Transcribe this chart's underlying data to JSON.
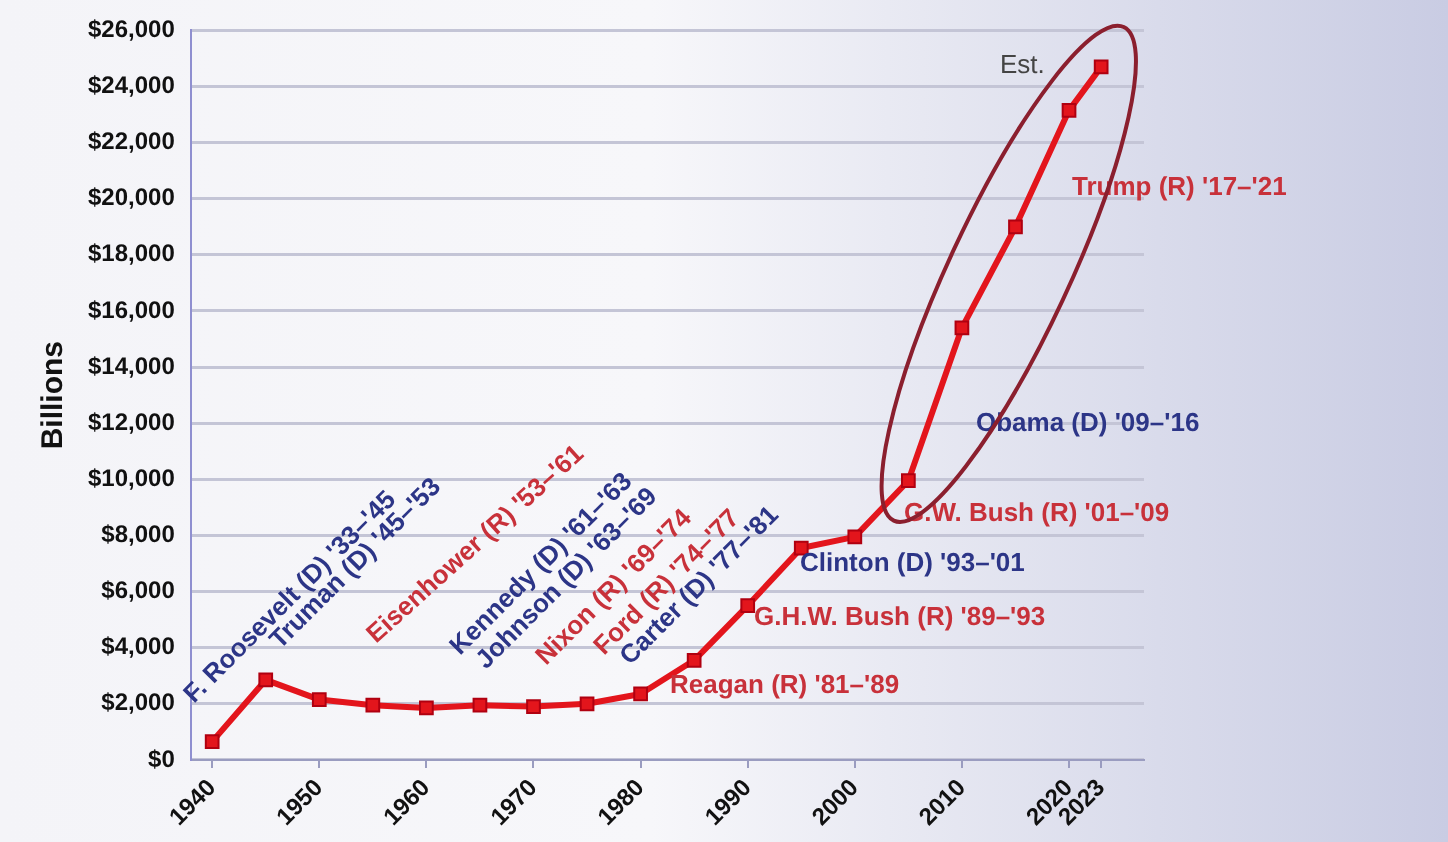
{
  "chart_data": {
    "type": "line",
    "ylabel": "Billions",
    "x": [
      1940,
      1945,
      1950,
      1955,
      1960,
      1965,
      1970,
      1975,
      1980,
      1985,
      1990,
      1995,
      2000,
      2005,
      2010,
      2015,
      2020,
      2023
    ],
    "series": [
      {
        "color": "#e3151c",
        "values": [
          650,
          2850,
          2150,
          1950,
          1850,
          1950,
          1900,
          2000,
          2350,
          3550,
          5500,
          7550,
          7950,
          9950,
          15400,
          19000,
          23150,
          24700
        ]
      }
    ],
    "xlim": [
      1938,
      2027
    ],
    "xticks": [
      1940,
      1950,
      1960,
      1970,
      1980,
      1990,
      2000,
      2010,
      2020,
      2023
    ],
    "ylim": [
      0,
      26000
    ],
    "yticks": [
      {
        "value": 0,
        "label": "$0"
      },
      {
        "value": 2000,
        "label": "$2,000"
      },
      {
        "value": 4000,
        "label": "$4,000"
      },
      {
        "value": 6000,
        "label": "$6,000"
      },
      {
        "value": 8000,
        "label": "$8,000"
      },
      {
        "value": 10000,
        "label": "$10,000"
      },
      {
        "value": 12000,
        "label": "$12,000"
      },
      {
        "value": 14000,
        "label": "$14,000"
      },
      {
        "value": 16000,
        "label": "$16,000"
      },
      {
        "value": 18000,
        "label": "$18,000"
      },
      {
        "value": 20000,
        "label": "$20,000"
      },
      {
        "value": 22000,
        "label": "$22,000"
      },
      {
        "value": 24000,
        "label": "$24,000"
      },
      {
        "value": 26000,
        "label": "$26,000"
      }
    ],
    "grid": "y",
    "legend": false,
    "marker": "square",
    "line_style": "solid",
    "annotations": [
      "F. Roosevelt (D) '33–'45",
      "Truman (D) '45–'53",
      "Eisenhower (R) '53–'61",
      "Kennedy (D) '61–'63",
      "Johnson (D) '63–'69",
      "Nixon (R) '69–'74",
      "Ford (R) '74–'77",
      "Carter (D) '77–'81",
      "Reagan (R) '81–'89",
      "G.H.W. Bush (R) '89–'93",
      "Clinton (D) '93–'01",
      "G.W. Bush (R) '01–'09",
      "Obama (D) '09–'16",
      "Trump (R) '17–'21",
      "Est."
    ]
  }
}
